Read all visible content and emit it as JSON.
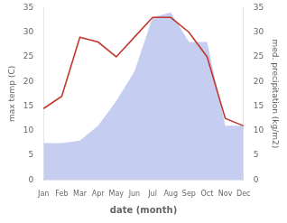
{
  "chart_data": {
    "type": "line",
    "xlabel": "date (month)",
    "ylabel": "max temp (C)",
    "y2label": "med. precipitation (kg/m2)",
    "categories": [
      "Jan",
      "Feb",
      "Mar",
      "Apr",
      "May",
      "Jun",
      "Jul",
      "Aug",
      "Sep",
      "Oct",
      "Nov",
      "Dec"
    ],
    "series": [
      {
        "type": "area",
        "axis": "y2",
        "color": "#c5cdf0",
        "values": [
          7.5,
          7.5,
          8.0,
          11.0,
          16.0,
          22.0,
          33.0,
          34.0,
          28.0,
          28.0,
          11.0,
          11.0
        ]
      },
      {
        "type": "line",
        "axis": "y",
        "color": "#c0392b",
        "values": [
          14.5,
          17.0,
          29.0,
          28.0,
          25.0,
          29.0,
          33.0,
          33.0,
          30.0,
          25.0,
          12.5,
          11.0
        ]
      }
    ],
    "ylim": [
      0,
      35
    ],
    "yticks": [
      0,
      5,
      10,
      15,
      20,
      25,
      30,
      35
    ],
    "y2lim": [
      0,
      35
    ],
    "y2ticks": [
      0,
      5,
      10,
      15,
      20,
      25,
      30,
      35
    ],
    "grid": false
  }
}
